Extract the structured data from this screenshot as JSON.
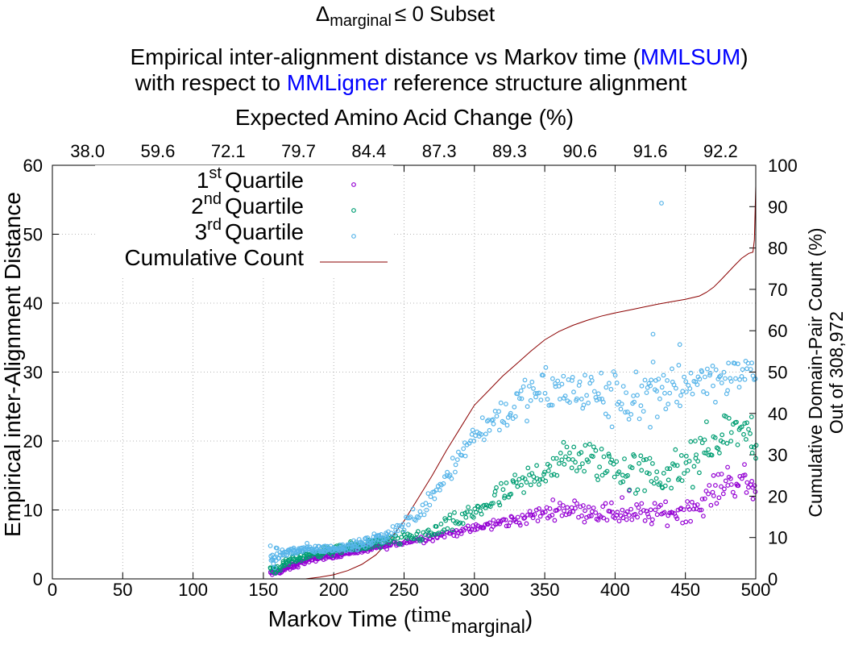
{
  "chart_data": {
    "type": "scatter",
    "title": {
      "prefix": "Δ",
      "subscript": "marginal",
      "suffix": "≤ 0 Subset"
    },
    "subtitle": {
      "line1_before": "Empirical inter-alignment distance vs Markov time (",
      "line1_highlight": "MMLSUM",
      "line1_after": ")",
      "line2_before": "with respect to ",
      "line2_highlight": "MMLigner",
      "line2_after": " reference structure alignment",
      "highlight_color": "#0000ff"
    },
    "top_axis": {
      "label": "Expected Amino Acid Change (%)",
      "tick_labels": [
        "38.0",
        "59.6",
        "72.1",
        "79.7",
        "84.4",
        "87.3",
        "89.3",
        "90.6",
        "91.6",
        "92.2"
      ],
      "tick_positions_x": [
        25,
        75,
        125,
        175,
        225,
        275,
        325,
        375,
        425,
        475
      ]
    },
    "xlabel": {
      "before": "Markov Time (",
      "serif_part": "time",
      "subscript": "marginal",
      "after": ")"
    },
    "ylabel": "Empirical inter-Alignment Distance",
    "y2label_line1": "Cumulative Domain-Pair Count (%)",
    "y2label_line2": "Out of 308,972",
    "xlim": [
      0,
      500
    ],
    "ylim": [
      0,
      60
    ],
    "y2lim": [
      0,
      100
    ],
    "xticks": [
      0,
      50,
      100,
      150,
      200,
      250,
      300,
      350,
      400,
      450,
      500
    ],
    "yticks": [
      0,
      10,
      20,
      30,
      40,
      50,
      60
    ],
    "y2ticks": [
      0,
      10,
      20,
      30,
      40,
      50,
      60,
      70,
      80,
      90,
      100
    ],
    "grid": true,
    "legend_position": "top-left",
    "series": [
      {
        "name_base": "1",
        "name_sup": "st",
        "name_rest": "Quartile",
        "color": "#9400d3",
        "marker": "circle",
        "anchors": [
          [
            155,
            0.8
          ],
          [
            160,
            1.0
          ],
          [
            170,
            1.8
          ],
          [
            180,
            2.6
          ],
          [
            190,
            3.1
          ],
          [
            200,
            3.4
          ],
          [
            220,
            4.2
          ],
          [
            250,
            5.3
          ],
          [
            280,
            6.5
          ],
          [
            300,
            7.3
          ],
          [
            320,
            8.2
          ],
          [
            340,
            9.0
          ],
          [
            360,
            10.3
          ],
          [
            380,
            9.9
          ],
          [
            400,
            9.5
          ],
          [
            420,
            9.4
          ],
          [
            440,
            9.6
          ],
          [
            460,
            10.5
          ],
          [
            470,
            12.5
          ],
          [
            480,
            14.0
          ],
          [
            490,
            14.0
          ],
          [
            500,
            13.5
          ]
        ],
        "spread": [
          [
            155,
            0.4
          ],
          [
            200,
            0.3
          ],
          [
            300,
            0.5
          ],
          [
            350,
            1.0
          ],
          [
            400,
            1.3
          ],
          [
            450,
            1.4
          ],
          [
            500,
            1.7
          ]
        ],
        "extras": [
          [
            410,
            12.8
          ],
          [
            405,
            11.8
          ],
          [
            492,
            16.6
          ],
          [
            498,
            11.6
          ],
          [
            480,
            16.2
          ],
          [
            470,
            15.0
          ]
        ]
      },
      {
        "name_base": "2",
        "name_sup": "nd",
        "name_rest": "Quartile",
        "color": "#009e73",
        "marker": "circle",
        "anchors": [
          [
            155,
            1.4
          ],
          [
            160,
            1.5
          ],
          [
            170,
            2.6
          ],
          [
            180,
            3.4
          ],
          [
            190,
            3.8
          ],
          [
            200,
            4.1
          ],
          [
            220,
            4.8
          ],
          [
            250,
            5.8
          ],
          [
            270,
            6.7
          ],
          [
            290,
            8.5
          ],
          [
            310,
            11.0
          ],
          [
            330,
            13.0
          ],
          [
            350,
            16.0
          ],
          [
            370,
            17.5
          ],
          [
            390,
            17.0
          ],
          [
            410,
            15.5
          ],
          [
            430,
            15.0
          ],
          [
            450,
            15.8
          ],
          [
            470,
            19.0
          ],
          [
            480,
            22.0
          ],
          [
            490,
            21.5
          ],
          [
            500,
            20.0
          ]
        ],
        "spread": [
          [
            155,
            0.5
          ],
          [
            200,
            0.5
          ],
          [
            260,
            0.8
          ],
          [
            300,
            1.3
          ],
          [
            350,
            2.2
          ],
          [
            400,
            2.6
          ],
          [
            450,
            2.8
          ],
          [
            500,
            2.0
          ]
        ],
        "extras": [
          [
            457,
            20.0
          ],
          [
            465,
            22.8
          ],
          [
            497,
            23.5
          ],
          [
            500,
            17.5
          ]
        ]
      },
      {
        "name_base": "3",
        "name_sup": "rd",
        "name_rest": "Quartile",
        "color": "#56b4e9",
        "marker": "circle",
        "anchors": [
          [
            155,
            2.5
          ],
          [
            160,
            3.5
          ],
          [
            170,
            4.0
          ],
          [
            180,
            4.3
          ],
          [
            190,
            4.3
          ],
          [
            200,
            4.4
          ],
          [
            220,
            5.0
          ],
          [
            240,
            6.5
          ],
          [
            260,
            9.5
          ],
          [
            280,
            15.0
          ],
          [
            300,
            21.0
          ],
          [
            320,
            24.0
          ],
          [
            340,
            26.5
          ],
          [
            360,
            27.5
          ],
          [
            380,
            27.0
          ],
          [
            400,
            26.0
          ],
          [
            420,
            26.5
          ],
          [
            440,
            28.0
          ],
          [
            460,
            29.0
          ],
          [
            480,
            29.5
          ],
          [
            500,
            30.0
          ]
        ],
        "spread": [
          [
            155,
            0.8
          ],
          [
            200,
            0.4
          ],
          [
            240,
            0.8
          ],
          [
            300,
            1.8
          ],
          [
            350,
            2.8
          ],
          [
            400,
            3.5
          ],
          [
            450,
            3.2
          ],
          [
            500,
            1.8
          ]
        ],
        "extras": [
          [
            433,
            54.5
          ],
          [
            427,
            35.5
          ],
          [
            446,
            34.0
          ],
          [
            155,
            4.8
          ],
          [
            158,
            1.6
          ],
          [
            430,
            23.5
          ],
          [
            425,
            22.0
          ]
        ]
      }
    ],
    "cumulative": {
      "name": "Cumulative Count",
      "color": "#8b0000",
      "points": [
        [
          180,
          0
        ],
        [
          190,
          0.4
        ],
        [
          200,
          1.0
        ],
        [
          210,
          2.0
        ],
        [
          220,
          3.5
        ],
        [
          230,
          5.8
        ],
        [
          240,
          9.5
        ],
        [
          250,
          14.0
        ],
        [
          260,
          19.5
        ],
        [
          270,
          25.0
        ],
        [
          280,
          31.0
        ],
        [
          290,
          36.5
        ],
        [
          300,
          42.0
        ],
        [
          310,
          45.5
        ],
        [
          320,
          49.0
        ],
        [
          330,
          52.0
        ],
        [
          340,
          55.0
        ],
        [
          350,
          57.8
        ],
        [
          360,
          59.8
        ],
        [
          370,
          61.3
        ],
        [
          380,
          62.5
        ],
        [
          390,
          63.5
        ],
        [
          400,
          64.3
        ],
        [
          410,
          65.0
        ],
        [
          420,
          65.7
        ],
        [
          430,
          66.4
        ],
        [
          440,
          67.0
        ],
        [
          450,
          67.6
        ],
        [
          460,
          68.4
        ],
        [
          465,
          69.3
        ],
        [
          470,
          70.5
        ],
        [
          475,
          72.2
        ],
        [
          480,
          74.0
        ],
        [
          485,
          75.8
        ],
        [
          490,
          77.5
        ],
        [
          495,
          78.7
        ],
        [
          498,
          79.0
        ],
        [
          499,
          82.0
        ],
        [
          500,
          95.0
        ]
      ]
    }
  }
}
